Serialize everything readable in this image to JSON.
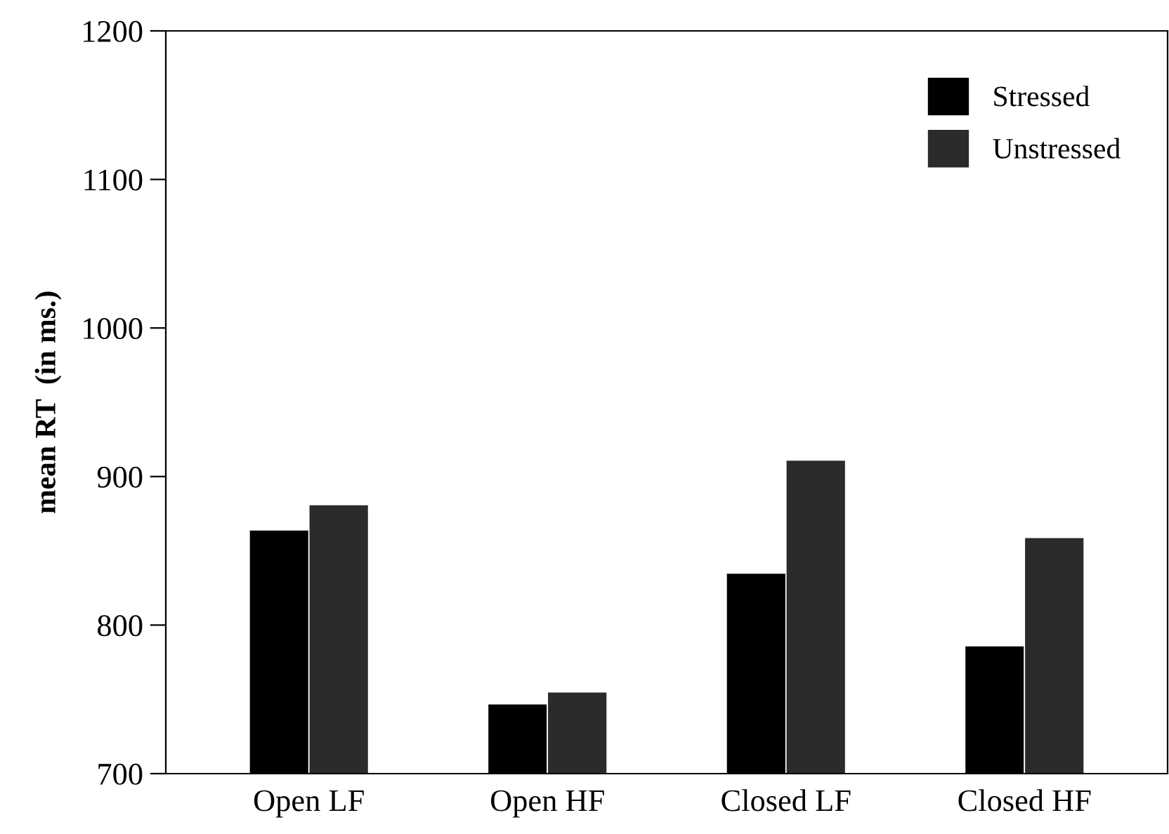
{
  "chart_data": {
    "type": "bar",
    "ylabel": "mean RT  (in ms.)",
    "categories": [
      "Open LF",
      "Open HF",
      "Closed LF",
      "Closed HF"
    ],
    "series": [
      {
        "name": "Stressed",
        "color": "#000000",
        "values": [
          864,
          747,
          835,
          786
        ]
      },
      {
        "name": "Unstressed",
        "color": "#2b2b2b",
        "values": [
          881,
          755,
          911,
          859
        ]
      }
    ],
    "ylim": [
      700,
      1200
    ],
    "yticks": [
      700,
      800,
      900,
      1000,
      1100,
      1200
    ],
    "grid": false,
    "legend": "top right"
  }
}
